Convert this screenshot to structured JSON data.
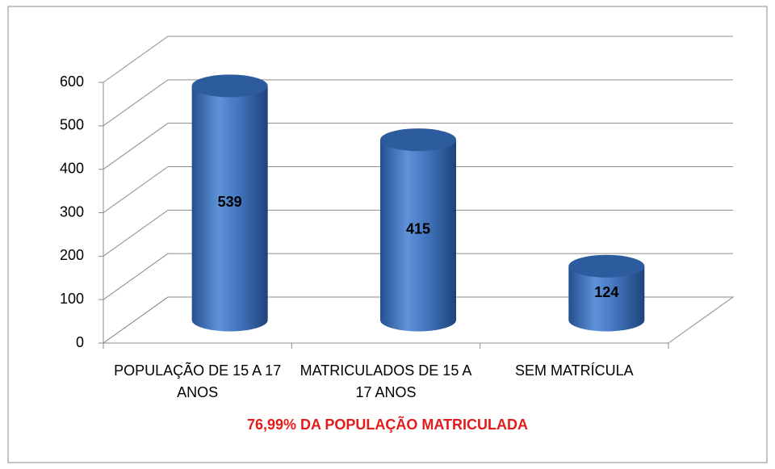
{
  "chart_data": {
    "type": "bar3d",
    "categories": [
      "POPULAÇÃO DE 15 A 17 ANOS",
      "MATRICULADOS DE 15 A 17 ANOS",
      "SEM MATRÍCULA"
    ],
    "values": [
      539,
      415,
      124
    ],
    "color": "#3a6cb8",
    "ylim": [
      0,
      600
    ],
    "yticks": [
      0,
      100,
      200,
      300,
      400,
      500,
      600
    ],
    "grid": true,
    "annotation": "76,99% DA POPULAÇÃO MATRICULADA"
  }
}
